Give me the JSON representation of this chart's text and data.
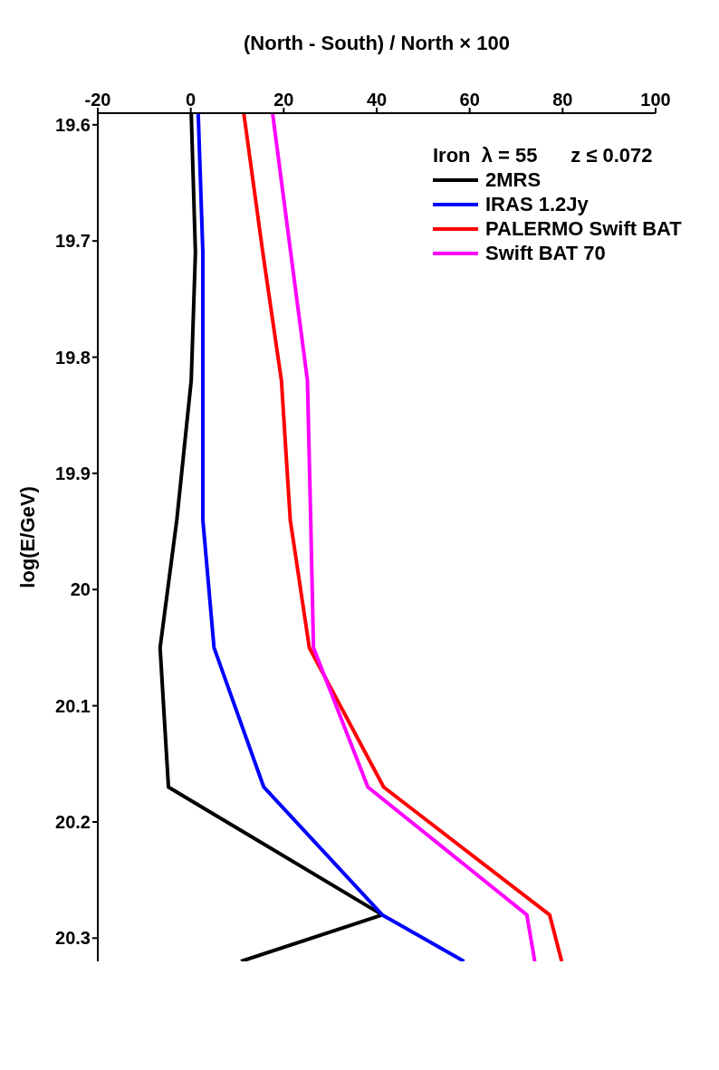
{
  "chart_data": {
    "type": "line",
    "xlabel": "(North - South) / North × 100",
    "ylabel": "log(E/GeV)",
    "legend_title": "Iron  λ = 55      z ≤ 0.072",
    "legend": "top right",
    "grid": false,
    "marker": "none",
    "line_style": "solid",
    "xlim": [
      -20,
      100
    ],
    "xticks": [
      -20,
      0,
      20,
      40,
      60,
      80,
      100
    ],
    "ylim": [
      20.32,
      19.59
    ],
    "yticks": [
      19.6,
      19.7,
      19.8,
      19.9,
      20,
      20.1,
      20.2,
      20.3
    ],
    "series": [
      {
        "name": "2MRS",
        "color": "#000000",
        "x": [
          0.1,
          1.0,
          0.1,
          -3.0,
          -6.6,
          -4.8,
          41.2,
          10.8
        ],
        "values": [
          19.59,
          19.71,
          19.82,
          19.94,
          20.05,
          20.17,
          20.28,
          20.32
        ]
      },
      {
        "name": "IRAS 1.2Jy",
        "color": "#0000ff",
        "x": [
          1.6,
          2.6,
          2.6,
          2.6,
          5.0,
          15.7,
          41.2,
          58.8
        ],
        "values": [
          19.59,
          19.71,
          19.82,
          19.94,
          20.05,
          20.17,
          20.28,
          20.32
        ]
      },
      {
        "name": "PALERMO Swift BAT",
        "color": "#ff0000",
        "x": [
          11.4,
          15.5,
          19.5,
          21.4,
          25.5,
          41.5,
          77.2,
          79.8
        ],
        "values": [
          19.59,
          19.71,
          19.82,
          19.94,
          20.05,
          20.17,
          20.28,
          20.32
        ]
      },
      {
        "name": "Swift BAT 70",
        "color": "#ff00ff",
        "x": [
          17.6,
          21.5,
          25.1,
          25.8,
          26.4,
          38.1,
          72.3,
          74.0
        ],
        "values": [
          19.59,
          19.71,
          19.82,
          19.94,
          20.05,
          20.17,
          20.28,
          20.32
        ]
      }
    ]
  }
}
